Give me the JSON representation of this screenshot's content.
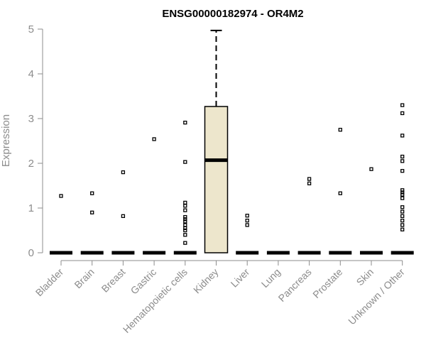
{
  "chart_data": {
    "type": "box",
    "title": "ENSG00000182974 - OR4M2",
    "xlabel": "",
    "ylabel": "Expression",
    "ylim": [
      0,
      5
    ],
    "yticks": [
      0,
      1,
      2,
      3,
      4,
      5
    ],
    "grid": false,
    "categories": [
      "Bladder",
      "Brain",
      "Breast",
      "Gastric",
      "Hematopoietic cells",
      "Kidney",
      "Liver",
      "Lung",
      "Pancreas",
      "Prostate",
      "Skin",
      "Unknown / Other"
    ],
    "boxes": [
      {
        "category": "Bladder",
        "min": 0,
        "q1": 0,
        "median": 0,
        "q3": 0,
        "max": 0,
        "outliers": [
          1.27
        ]
      },
      {
        "category": "Brain",
        "min": 0,
        "q1": 0,
        "median": 0,
        "q3": 0,
        "max": 0,
        "outliers": [
          0.9,
          1.33
        ]
      },
      {
        "category": "Breast",
        "min": 0,
        "q1": 0,
        "median": 0,
        "q3": 0,
        "max": 0,
        "outliers": [
          0.82,
          1.8
        ]
      },
      {
        "category": "Gastric",
        "min": 0,
        "q1": 0,
        "median": 0,
        "q3": 0,
        "max": 0,
        "outliers": [
          2.54
        ]
      },
      {
        "category": "Hematopoietic cells",
        "min": 0,
        "q1": 0,
        "median": 0,
        "q3": 0,
        "max": 0,
        "outliers": [
          0.22,
          0.4,
          0.5,
          0.55,
          0.62,
          0.7,
          0.75,
          0.8,
          0.95,
          1.05,
          1.12,
          2.03,
          2.91
        ]
      },
      {
        "category": "Kidney",
        "min": 0,
        "q1": 0,
        "median": 2.07,
        "q3": 3.27,
        "max": 4.97,
        "outliers": []
      },
      {
        "category": "Liver",
        "min": 0,
        "q1": 0,
        "median": 0,
        "q3": 0,
        "max": 0,
        "outliers": [
          0.62,
          0.72,
          0.83
        ]
      },
      {
        "category": "Lung",
        "min": 0,
        "q1": 0,
        "median": 0,
        "q3": 0,
        "max": 0,
        "outliers": []
      },
      {
        "category": "Pancreas",
        "min": 0,
        "q1": 0,
        "median": 0,
        "q3": 0,
        "max": 0,
        "outliers": [
          1.55,
          1.65
        ]
      },
      {
        "category": "Prostate",
        "min": 0,
        "q1": 0,
        "median": 0,
        "q3": 0,
        "max": 0,
        "outliers": [
          1.33,
          2.75
        ]
      },
      {
        "category": "Skin",
        "min": 0,
        "q1": 0,
        "median": 0,
        "q3": 0,
        "max": 0,
        "outliers": [
          1.87
        ]
      },
      {
        "category": "Unknown / Other",
        "min": 0,
        "q1": 0,
        "median": 0,
        "q3": 0,
        "max": 0,
        "outliers": [
          0.52,
          0.62,
          0.72,
          0.82,
          0.92,
          1.02,
          1.22,
          1.3,
          1.35,
          1.4,
          1.83,
          2.05,
          2.15,
          2.62,
          3.12,
          3.3
        ]
      }
    ]
  },
  "colors": {
    "box_fill": "#ede6cc",
    "box_stroke": "#000000",
    "axis": "#8c8c8c",
    "title": "#000000"
  }
}
